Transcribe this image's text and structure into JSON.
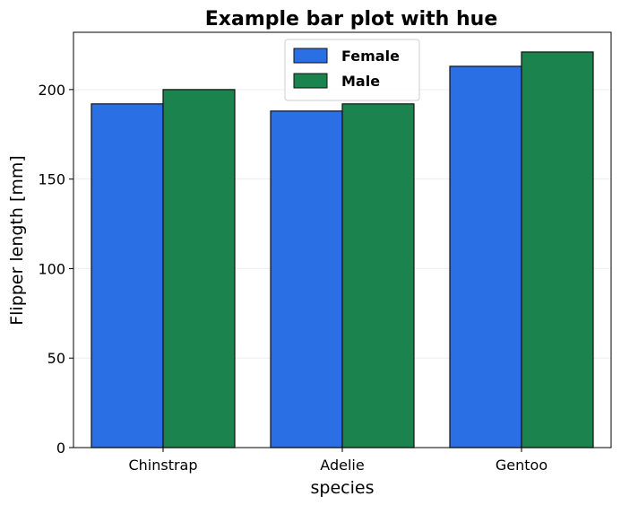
{
  "chart_data": {
    "type": "bar",
    "title": "Example bar plot with hue",
    "xlabel": "species",
    "ylabel": "Flipper length [mm]",
    "categories": [
      "Chinstrap",
      "Adelie",
      "Gentoo"
    ],
    "series": [
      {
        "name": "Female",
        "values": [
          192,
          188,
          213
        ],
        "color": "#2a6fe3"
      },
      {
        "name": "Male",
        "values": [
          200,
          192,
          221
        ],
        "color": "#1a834e"
      }
    ],
    "ylim": [
      0,
      232
    ],
    "yticks": [
      0,
      50,
      100,
      150,
      200
    ],
    "grid": true,
    "legend_position": "top-center",
    "edge_color": "#111111",
    "grid_color": "#eeeeee"
  }
}
